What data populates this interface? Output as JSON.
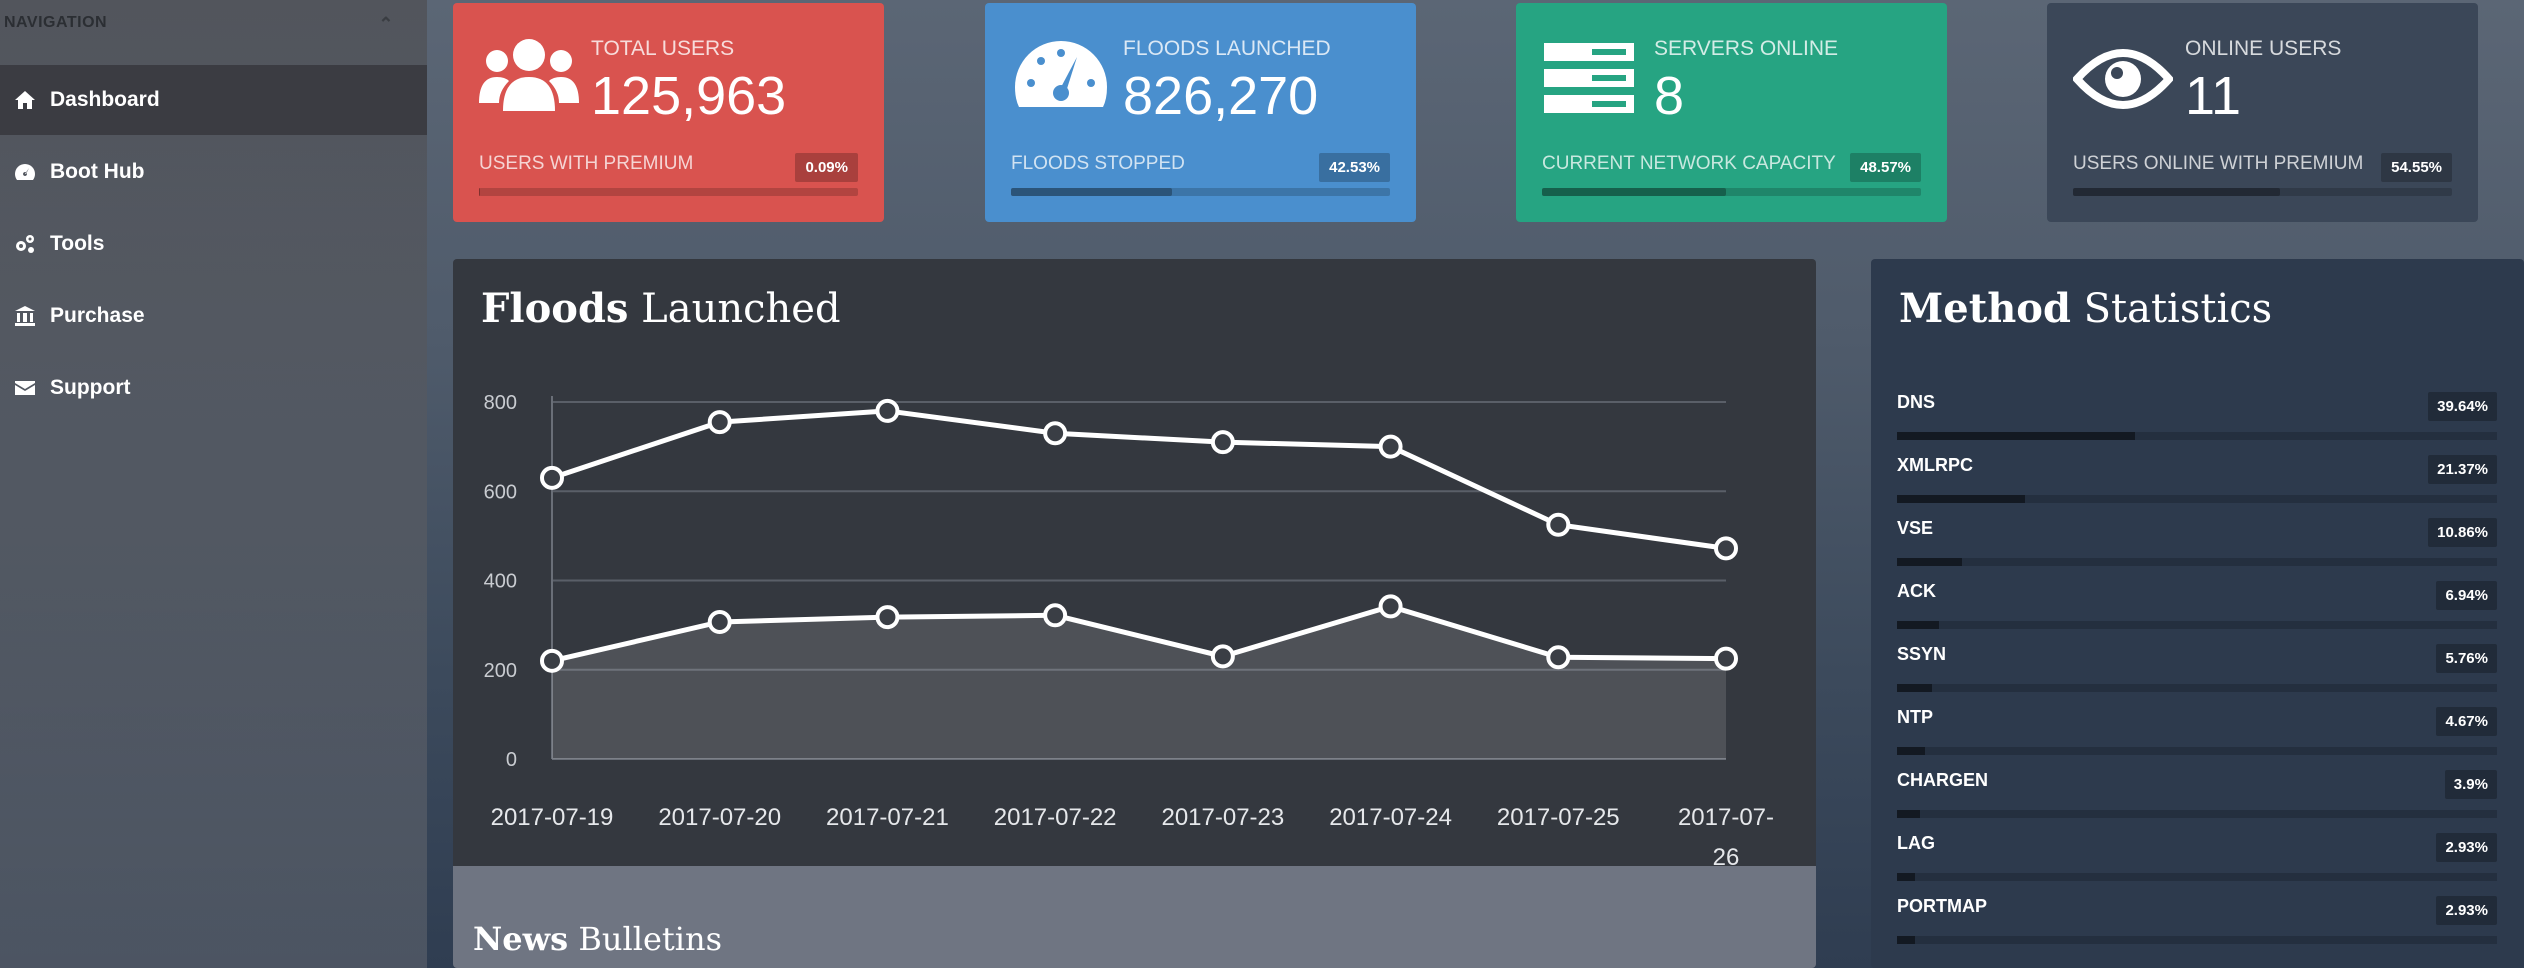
{
  "sidebar": {
    "header": "NAVIGATION",
    "items": [
      {
        "label": "Dashboard",
        "icon": "home-icon",
        "active": true
      },
      {
        "label": "Boot Hub",
        "icon": "gauge-icon",
        "active": false
      },
      {
        "label": "Tools",
        "icon": "cogs-icon",
        "active": false
      },
      {
        "label": "Purchase",
        "icon": "bank-icon",
        "active": false
      },
      {
        "label": "Support",
        "icon": "envelope-icon",
        "active": false
      }
    ]
  },
  "stats": {
    "total_users": {
      "label": "TOTAL USERS",
      "value": "125,963",
      "sub": "USERS WITH PREMIUM",
      "pct": "0.09%",
      "fraction": 0.0009,
      "icon": "users-icon"
    },
    "floods_launched": {
      "label": "FLOODS LAUNCHED",
      "value": "826,270",
      "sub": "FLOODS STOPPED",
      "pct": "42.53%",
      "fraction": 0.4253,
      "icon": "dashboard-gauge-icon"
    },
    "servers_online": {
      "label": "SERVERS ONLINE",
      "value": "8",
      "sub": "CURRENT NETWORK CAPACITY",
      "pct": "48.57%",
      "fraction": 0.4857,
      "icon": "servers-icon"
    },
    "online_users": {
      "label": "ONLINE USERS",
      "value": "11",
      "sub": "USERS ONLINE WITH PREMIUM",
      "pct": "54.55%",
      "fraction": 0.5455,
      "icon": "eye-icon"
    }
  },
  "chart_panel": {
    "title_bold": "Floods",
    "title_rest": "Launched"
  },
  "chart_data": {
    "type": "line",
    "categories": [
      "2017-07-19",
      "2017-07-20",
      "2017-07-21",
      "2017-07-22",
      "2017-07-23",
      "2017-07-24",
      "2017-07-25",
      "2017-07-26"
    ],
    "series": [
      {
        "values": [
          630,
          755,
          780,
          730,
          710,
          700,
          525,
          472
        ]
      },
      {
        "values": [
          220,
          307,
          318,
          322,
          230,
          342,
          228,
          225
        ]
      }
    ],
    "yticks": [
      0,
      200,
      400,
      600,
      800
    ],
    "ylim": [
      0,
      800
    ],
    "grid": true
  },
  "news": {
    "title_bold": "News",
    "title_rest": "Bulletins"
  },
  "methods": {
    "title_bold": "Method",
    "title_rest": "Statistics",
    "items": [
      {
        "name": "DNS",
        "pct": "39.64%",
        "fraction": 0.3964
      },
      {
        "name": "XMLRPC",
        "pct": "21.37%",
        "fraction": 0.2137
      },
      {
        "name": "VSE",
        "pct": "10.86%",
        "fraction": 0.1086
      },
      {
        "name": "ACK",
        "pct": "6.94%",
        "fraction": 0.0694
      },
      {
        "name": "SSYN",
        "pct": "5.76%",
        "fraction": 0.0576
      },
      {
        "name": "NTP",
        "pct": "4.67%",
        "fraction": 0.0467
      },
      {
        "name": "CHARGEN",
        "pct": "3.9%",
        "fraction": 0.039
      },
      {
        "name": "LAG",
        "pct": "2.93%",
        "fraction": 0.0293
      },
      {
        "name": "PORTMAP",
        "pct": "2.93%",
        "fraction": 0.0293
      }
    ]
  }
}
